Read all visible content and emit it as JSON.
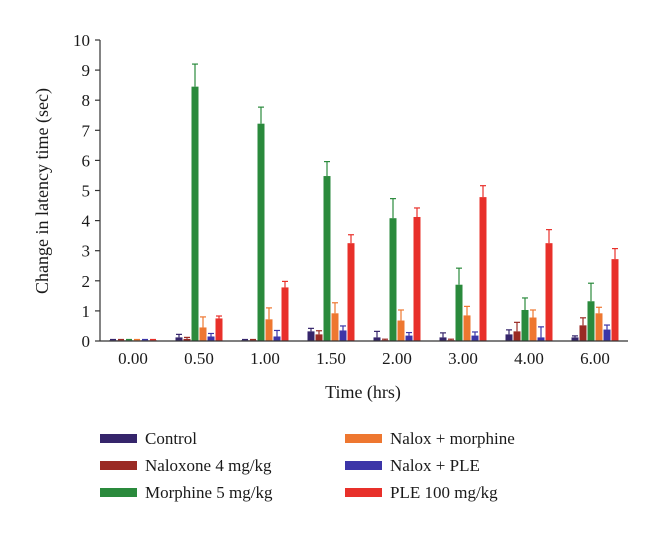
{
  "chart_data": {
    "type": "bar",
    "title": "",
    "xlabel": "Time (hrs)",
    "ylabel": "Change in latency time (sec)",
    "ylim": [
      0,
      10
    ],
    "yticks": [
      "0",
      "1",
      "2",
      "3",
      "4",
      "5",
      "6",
      "7",
      "8",
      "9",
      "10"
    ],
    "categories": [
      "0.00",
      "0.50",
      "1.00",
      "1.50",
      "2.00",
      "3.00",
      "4.00",
      "6.00"
    ],
    "error_bars": "upper",
    "legend_position": "bottom",
    "series": [
      {
        "name": "Control",
        "color": "#35256b",
        "values": [
          0.03,
          0.12,
          0.03,
          0.32,
          0.12,
          0.12,
          0.22,
          0.12
        ],
        "errors": [
          0.02,
          0.1,
          0.02,
          0.1,
          0.2,
          0.15,
          0.15,
          0.05
        ]
      },
      {
        "name": "Naloxone 4 mg/kg",
        "color": "#9a2a24",
        "values": [
          0.03,
          0.07,
          0.03,
          0.22,
          0.03,
          0.03,
          0.32,
          0.52
        ],
        "errors": [
          0.02,
          0.05,
          0.02,
          0.12,
          0.03,
          0.03,
          0.3,
          0.25
        ]
      },
      {
        "name": "Morphine 5 mg/kg",
        "color": "#2a8a3c",
        "values": [
          0.03,
          8.45,
          7.22,
          5.48,
          4.08,
          1.87,
          1.03,
          1.32
        ],
        "errors": [
          0.02,
          0.75,
          0.55,
          0.48,
          0.65,
          0.55,
          0.4,
          0.6
        ]
      },
      {
        "name": "Nalox + morphine",
        "color": "#ee7730",
        "values": [
          0.03,
          0.45,
          0.72,
          0.92,
          0.68,
          0.85,
          0.78,
          0.92
        ],
        "errors": [
          0.02,
          0.35,
          0.38,
          0.35,
          0.35,
          0.3,
          0.25,
          0.2
        ]
      },
      {
        "name": "Nalox + PLE",
        "color": "#3c35a8",
        "values": [
          0.03,
          0.15,
          0.15,
          0.35,
          0.18,
          0.18,
          0.12,
          0.38
        ],
        "errors": [
          0.02,
          0.1,
          0.2,
          0.15,
          0.1,
          0.12,
          0.35,
          0.15
        ]
      },
      {
        "name": "PLE 100 mg/kg",
        "color": "#e8302a",
        "values": [
          0.03,
          0.75,
          1.78,
          3.25,
          4.12,
          4.78,
          3.25,
          2.72
        ],
        "errors": [
          0.02,
          0.08,
          0.2,
          0.28,
          0.3,
          0.38,
          0.45,
          0.35
        ]
      }
    ]
  }
}
